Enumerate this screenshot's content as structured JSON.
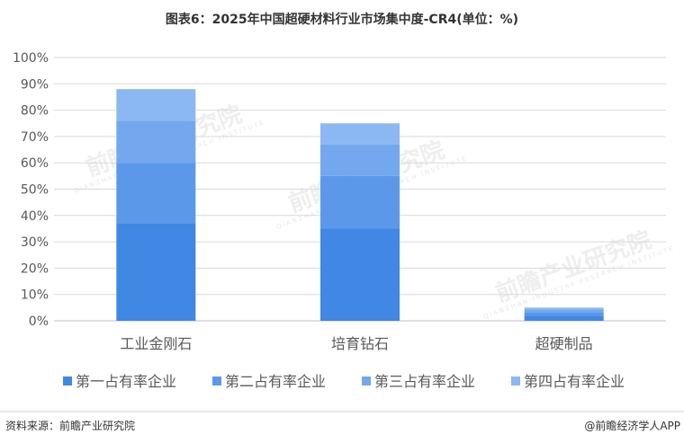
{
  "chart_data": {
    "type": "bar",
    "stacked": true,
    "title": "图表6：2025年中国超硬材料行业市场集中度-CR4(单位：%)",
    "categories": [
      "工业金刚石",
      "培育钻石",
      "超硬制品"
    ],
    "series": [
      {
        "name": "第一占有率企业",
        "color": "#4187e4",
        "values": [
          37,
          35,
          2
        ]
      },
      {
        "name": "第二占有率企业",
        "color": "#5b98ea",
        "values": [
          23,
          20,
          1.3
        ]
      },
      {
        "name": "第三占有率企业",
        "color": "#73a8ee",
        "values": [
          16,
          12,
          1
        ]
      },
      {
        "name": "第四占有率企业",
        "color": "#8bb8f2",
        "values": [
          12,
          8,
          0.7
        ]
      }
    ],
    "ylim": [
      0,
      100
    ],
    "yticks": [
      "0%",
      "10%",
      "20%",
      "30%",
      "40%",
      "50%",
      "60%",
      "70%",
      "80%",
      "90%",
      "100%"
    ],
    "grid": true,
    "legend": "bottom"
  },
  "footer": {
    "source": "资料来源：前瞻产业研究院",
    "brand": "@前瞻经济学人APP"
  },
  "watermark": {
    "text": "前瞻产业研究院",
    "sub": "QIANZHAN INDUSTRY RESEARCH INSTITUTE"
  }
}
